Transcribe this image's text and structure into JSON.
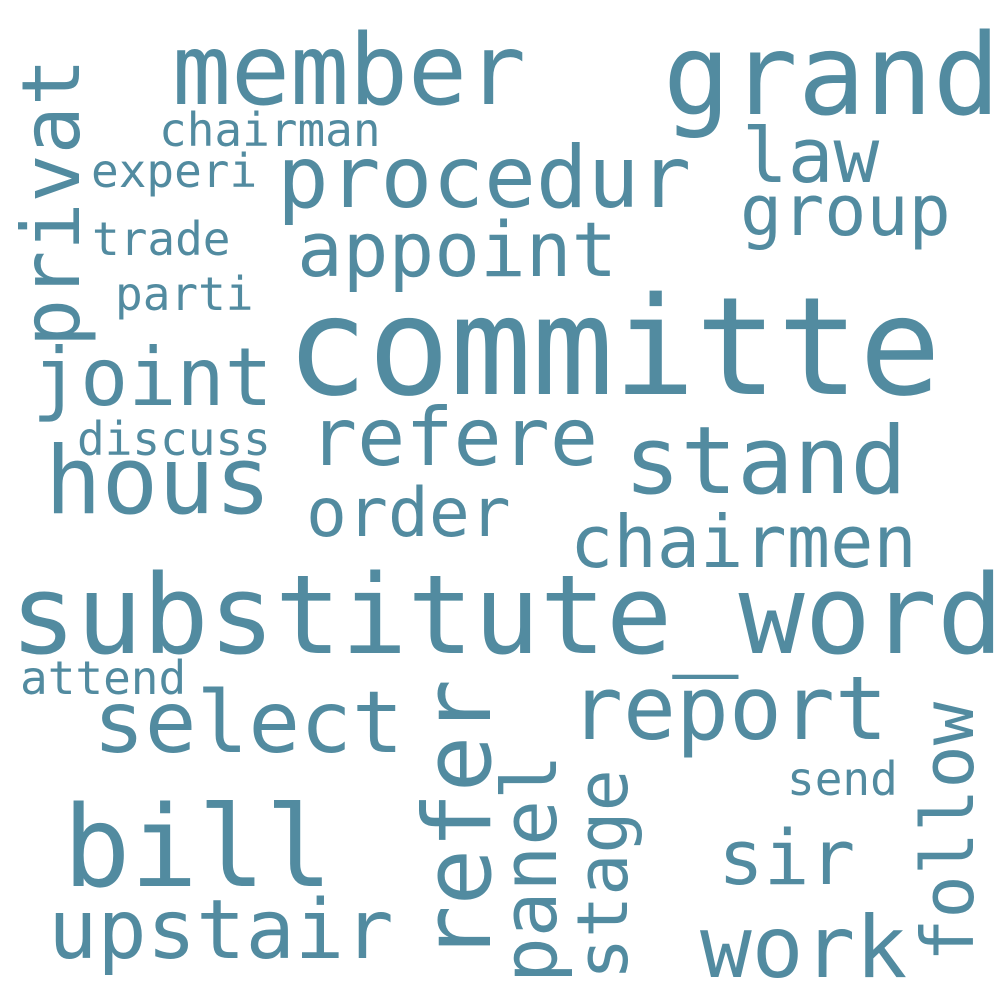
{
  "word_cloud": {
    "color": "#528ba0",
    "background": "#ffffff",
    "words": {
      "committe": "committe",
      "substitute_word": "substitute_word",
      "grand": "grand",
      "member": "member",
      "procedur": "procedur",
      "hous": "hous",
      "stand": "stand",
      "bill": "bill",
      "select": "select",
      "report": "report",
      "refere": "refere",
      "appoint": "appoint",
      "joint": "joint",
      "chairmen": "chairmen",
      "upstair": "upstair",
      "work": "work",
      "privat": "privat",
      "refer": "refer",
      "order": "order",
      "group": "group",
      "law": "law",
      "sir": "sir",
      "panel": "panel",
      "stage": "stage",
      "follow": "follow",
      "chairman": "chairman",
      "experi": "experi",
      "trade": "trade",
      "parti": "parti",
      "discuss": "discuss",
      "attend": "attend",
      "send": "send"
    }
  }
}
